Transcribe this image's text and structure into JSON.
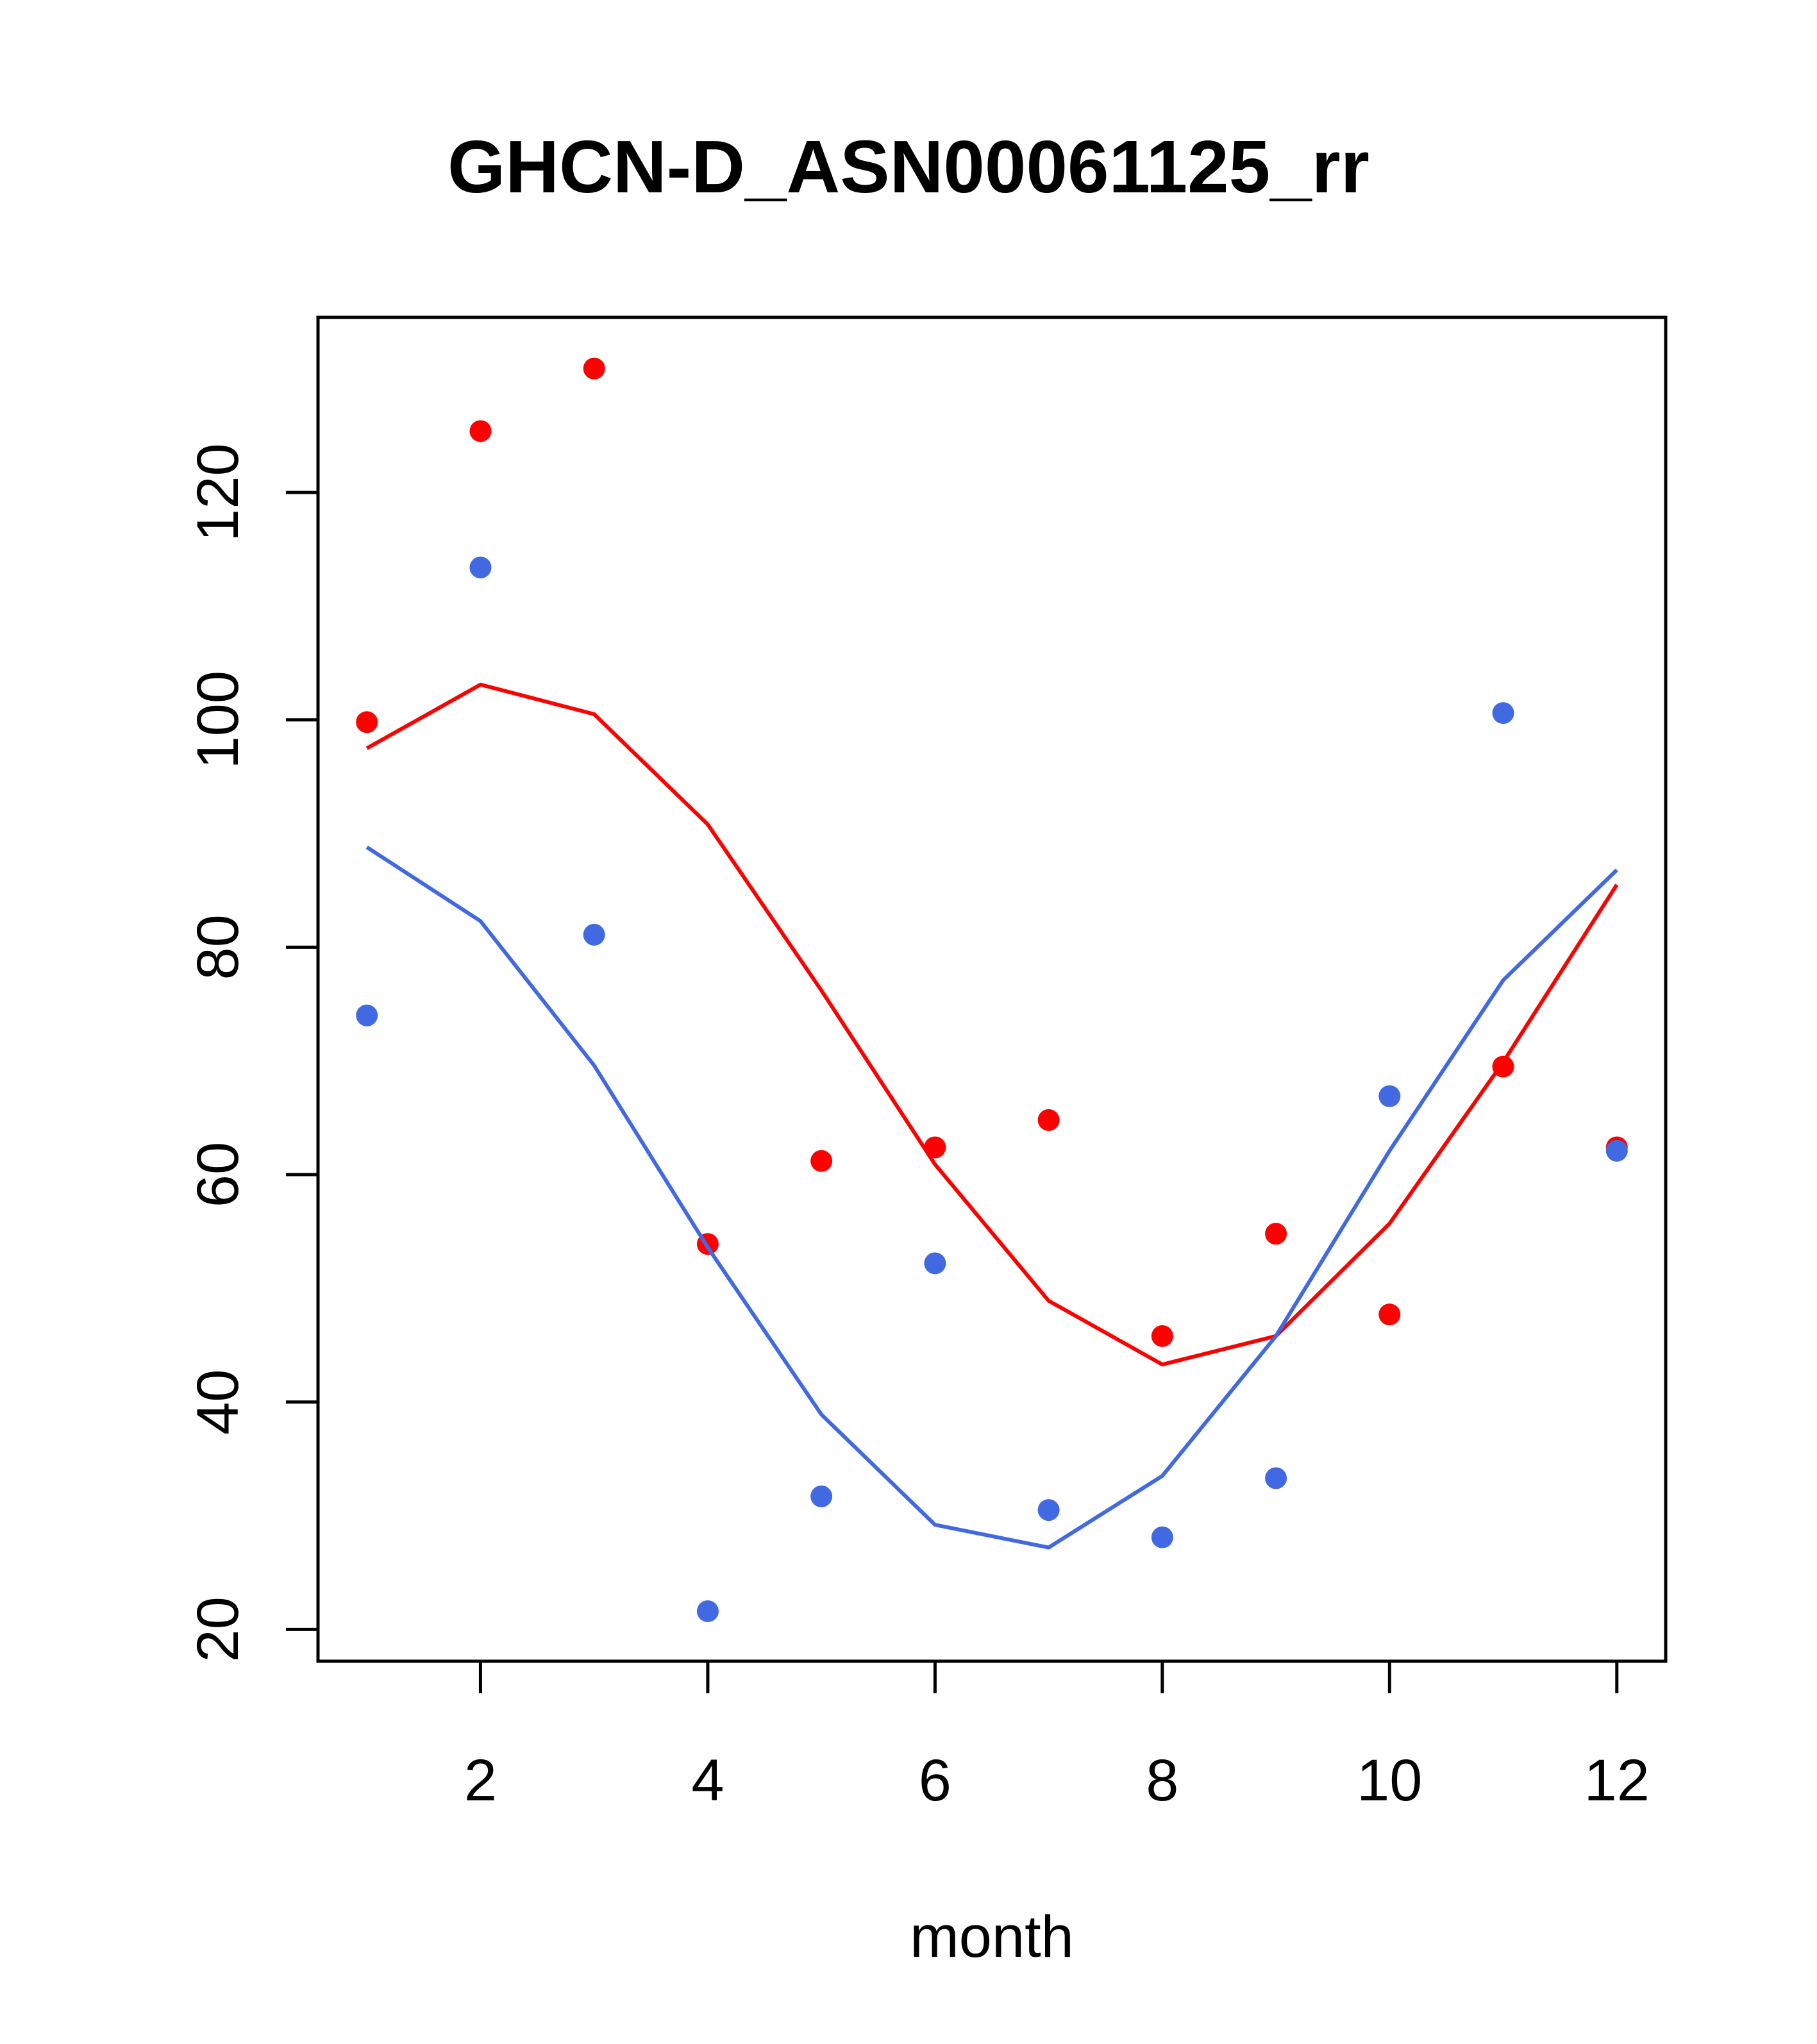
{
  "chart_data": {
    "type": "scatter",
    "title": "GHCN-D_ASN00061125_rr",
    "xlabel": "month",
    "ylabel": "",
    "xlim": [
      0.57,
      12.43
    ],
    "ylim": [
      17.2,
      135.4
    ],
    "xticks": [
      2,
      4,
      6,
      8,
      10,
      12
    ],
    "yticks": [
      20,
      40,
      60,
      80,
      100,
      120
    ],
    "grid": false,
    "legend": "none",
    "x": [
      1,
      2,
      3,
      4,
      5,
      6,
      7,
      8,
      9,
      10,
      11,
      12
    ],
    "series": [
      {
        "color": "#ff0000",
        "points": [
          99.8,
          125.4,
          130.9,
          53.9,
          61.2,
          62.4,
          64.8,
          45.8,
          54.8,
          47.7,
          69.5,
          62.4
        ],
        "line": [
          97.5,
          103.1,
          100.5,
          90.8,
          76.2,
          60.9,
          48.9,
          43.3,
          45.8,
          55.7,
          69.9,
          85.5
        ]
      },
      {
        "color": "#4169e1",
        "points": [
          74.0,
          113.4,
          81.1,
          21.6,
          31.7,
          52.2,
          30.5,
          28.1,
          33.3,
          66.9,
          100.6,
          62.1
        ],
        "line": [
          88.8,
          82.3,
          69.6,
          53.6,
          38.9,
          29.2,
          27.2,
          33.5,
          45.8,
          62.1,
          77.1,
          86.8
        ]
      }
    ]
  }
}
